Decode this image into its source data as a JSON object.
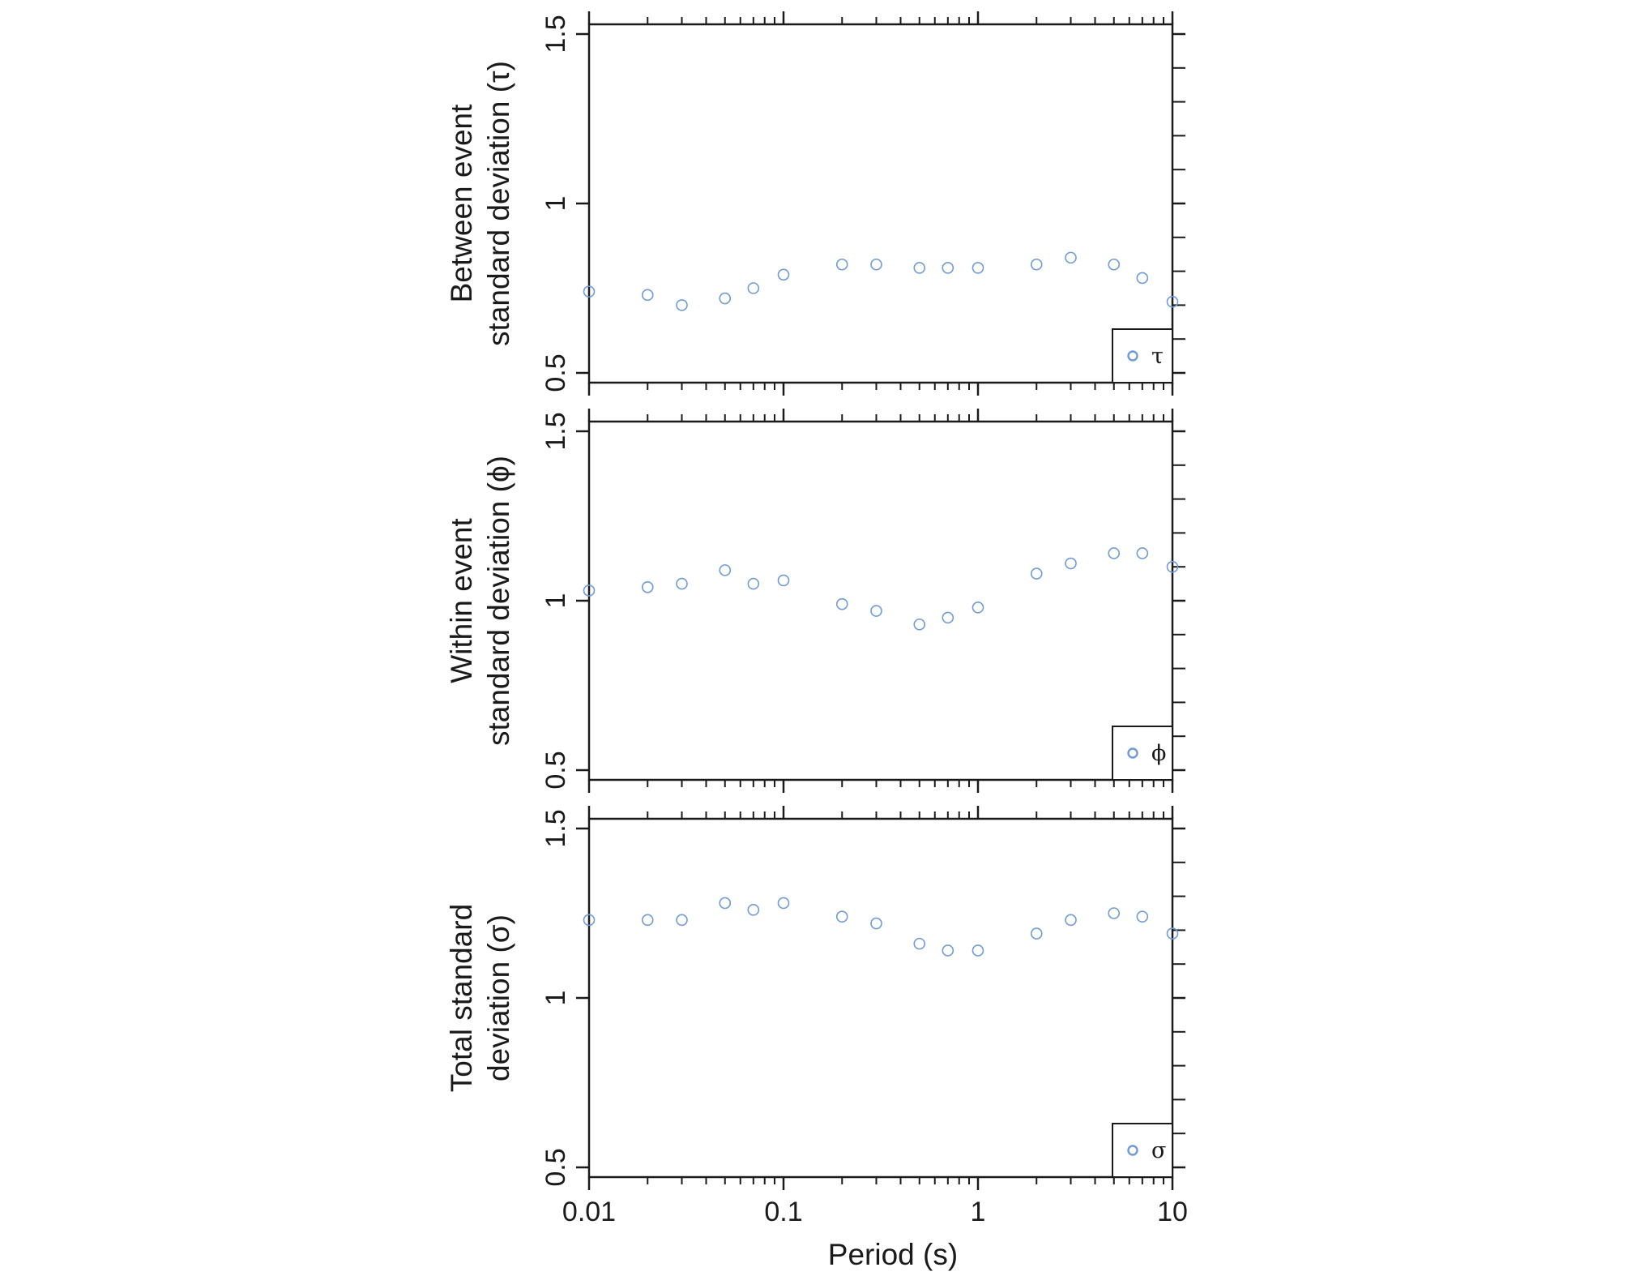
{
  "colors": {
    "point": "#6f9bd6",
    "axis": "#1a1a1a",
    "background": "#ffffff"
  },
  "chart_data": {
    "type": "scatter",
    "layout": "three vertically stacked panels sharing the x axis",
    "xlabel": "Period (s)",
    "x_scale": "log",
    "x_ticks": [
      "0.01",
      "0.1",
      "1",
      "10"
    ],
    "x": [
      0.01,
      0.02,
      0.03,
      0.05,
      0.07,
      0.1,
      0.2,
      0.3,
      0.5,
      0.7,
      1,
      2,
      3,
      5,
      7,
      10
    ],
    "grid": false,
    "panels": [
      {
        "ylabel_lines": [
          "Between event",
          "standard deviation (τ)"
        ],
        "ylim": [
          0.5,
          1.5
        ],
        "y_ticks": [
          "0.5",
          "1",
          "1.5"
        ],
        "legend": {
          "label": "τ",
          "position": "bottom-right"
        },
        "values": [
          0.74,
          0.73,
          0.7,
          0.72,
          0.75,
          0.79,
          0.82,
          0.82,
          0.81,
          0.81,
          0.81,
          0.82,
          0.84,
          0.82,
          0.78,
          0.71
        ]
      },
      {
        "ylabel_lines": [
          "Within event",
          "standard deviation (ϕ)"
        ],
        "ylim": [
          0.5,
          1.5
        ],
        "y_ticks": [
          "0.5",
          "1",
          "1.5"
        ],
        "legend": {
          "label": "ϕ",
          "position": "bottom-right"
        },
        "values": [
          1.03,
          1.04,
          1.05,
          1.09,
          1.05,
          1.06,
          0.99,
          0.97,
          0.93,
          0.95,
          0.98,
          1.08,
          1.11,
          1.14,
          1.14,
          1.1
        ]
      },
      {
        "ylabel_lines": [
          "Total standard",
          "deviation (σ)"
        ],
        "ylim": [
          0.5,
          1.5
        ],
        "y_ticks": [
          "0.5",
          "1",
          "1.5"
        ],
        "legend": {
          "label": "σ",
          "position": "bottom-right"
        },
        "values": [
          1.23,
          1.23,
          1.23,
          1.28,
          1.26,
          1.28,
          1.24,
          1.22,
          1.16,
          1.14,
          1.14,
          1.19,
          1.23,
          1.25,
          1.24,
          1.19
        ]
      }
    ]
  }
}
